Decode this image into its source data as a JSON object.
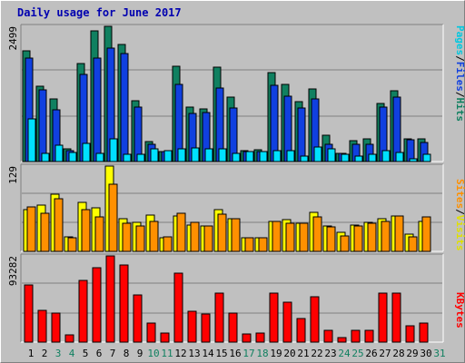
{
  "title": "Daily usage for June 2017",
  "colors": {
    "pages": "#00e0ff",
    "files": "#1040e0",
    "hits": "#108060",
    "visits": "#ffff00",
    "sites": "#ff9000",
    "kbytes": "#ff0000",
    "weekday_label": "#000000",
    "weekend_label": "#108060"
  },
  "chart_data": [
    {
      "type": "bar",
      "panel": "hits-files-pages",
      "categories": [
        "1",
        "2",
        "3",
        "4",
        "5",
        "6",
        "7",
        "8",
        "9",
        "10",
        "11",
        "12",
        "13",
        "14",
        "15",
        "16",
        "17",
        "18",
        "19",
        "20",
        "21",
        "22",
        "23",
        "24",
        "25",
        "26",
        "27",
        "28",
        "29",
        "30",
        "31"
      ],
      "weekend_days": [
        "3",
        "4",
        "10",
        "11",
        "17",
        "18",
        "24",
        "25",
        "31"
      ],
      "ymax_label": "2499",
      "ylim": [
        0,
        2499
      ],
      "series": [
        {
          "name": "Hits",
          "values": [
            2041,
            1389,
            1158,
            237,
            1813,
            2414,
            2499,
            2158,
            1132,
            367,
            190,
            1760,
            1014,
            973,
            1747,
            1191,
            198,
            220,
            1637,
            1422,
            1115,
            1336,
            479,
            154,
            382,
            413,
            1066,
            1302,
            417,
            426,
            null
          ]
        },
        {
          "name": "Files",
          "values": [
            1920,
            1317,
            948,
            195,
            1608,
            1915,
            2096,
            2000,
            1004,
            324,
            190,
            1426,
            882,
            902,
            1358,
            982,
            184,
            184,
            1405,
            1215,
            985,
            1165,
            321,
            147,
            322,
            323,
            1005,
            1196,
            402,
            351,
            null
          ]
        },
        {
          "name": "Pages",
          "values": [
            780,
            158,
            294,
            163,
            329,
            146,
            424,
            132,
            127,
            234,
            204,
            243,
            258,
            227,
            241,
            148,
            178,
            178,
            205,
            202,
            101,
            269,
            239,
            140,
            99,
            126,
            202,
            168,
            53,
            132,
            null
          ]
        }
      ]
    },
    {
      "type": "bar",
      "panel": "visits-sites",
      "categories": [
        "1",
        "2",
        "3",
        "4",
        "5",
        "6",
        "7",
        "8",
        "9",
        "10",
        "11",
        "12",
        "13",
        "14",
        "15",
        "16",
        "17",
        "18",
        "19",
        "20",
        "21",
        "22",
        "23",
        "24",
        "25",
        "26",
        "27",
        "28",
        "29",
        "30",
        "31"
      ],
      "ymax_label": "129",
      "ylim": [
        0,
        129
      ],
      "series": [
        {
          "name": "Visits",
          "values": [
            63,
            70,
            87,
            22,
            74,
            66,
            129,
            49,
            44,
            55,
            20,
            54,
            40,
            39,
            63,
            50,
            20,
            20,
            45,
            48,
            43,
            59,
            38,
            29,
            40,
            44,
            49,
            54,
            26,
            45,
            null
          ]
        },
        {
          "name": "Sites",
          "values": [
            67,
            58,
            80,
            20,
            63,
            52,
            101,
            42,
            39,
            45,
            22,
            58,
            44,
            39,
            56,
            49,
            20,
            20,
            45,
            42,
            42,
            52,
            37,
            23,
            39,
            43,
            45,
            54,
            22,
            52,
            null
          ]
        }
      ]
    },
    {
      "type": "bar",
      "panel": "kbytes",
      "categories": [
        "1",
        "2",
        "3",
        "4",
        "5",
        "6",
        "7",
        "8",
        "9",
        "10",
        "11",
        "12",
        "13",
        "14",
        "15",
        "16",
        "17",
        "18",
        "19",
        "20",
        "21",
        "22",
        "23",
        "24",
        "25",
        "26",
        "27",
        "28",
        "29",
        "30",
        "31"
      ],
      "ymax_label": "93282",
      "ylim": [
        0,
        93282
      ],
      "series": [
        {
          "name": "KBytes",
          "values": [
            62000,
            34000,
            31500,
            8100,
            67200,
            81000,
            93282,
            83700,
            50600,
            21000,
            10000,
            74800,
            33000,
            30500,
            53000,
            31600,
            9000,
            10000,
            53000,
            43000,
            25500,
            49500,
            13000,
            4800,
            12800,
            13000,
            53500,
            53500,
            17500,
            20800,
            null
          ]
        }
      ]
    }
  ],
  "legend": {
    "pages": "Pages",
    "sep1": "/",
    "files": "Files",
    "sep2": "/",
    "hits": "Hits",
    "sites": "Sites",
    "sep3": "/",
    "visits": "Visits",
    "kbytes": "KBytes"
  }
}
